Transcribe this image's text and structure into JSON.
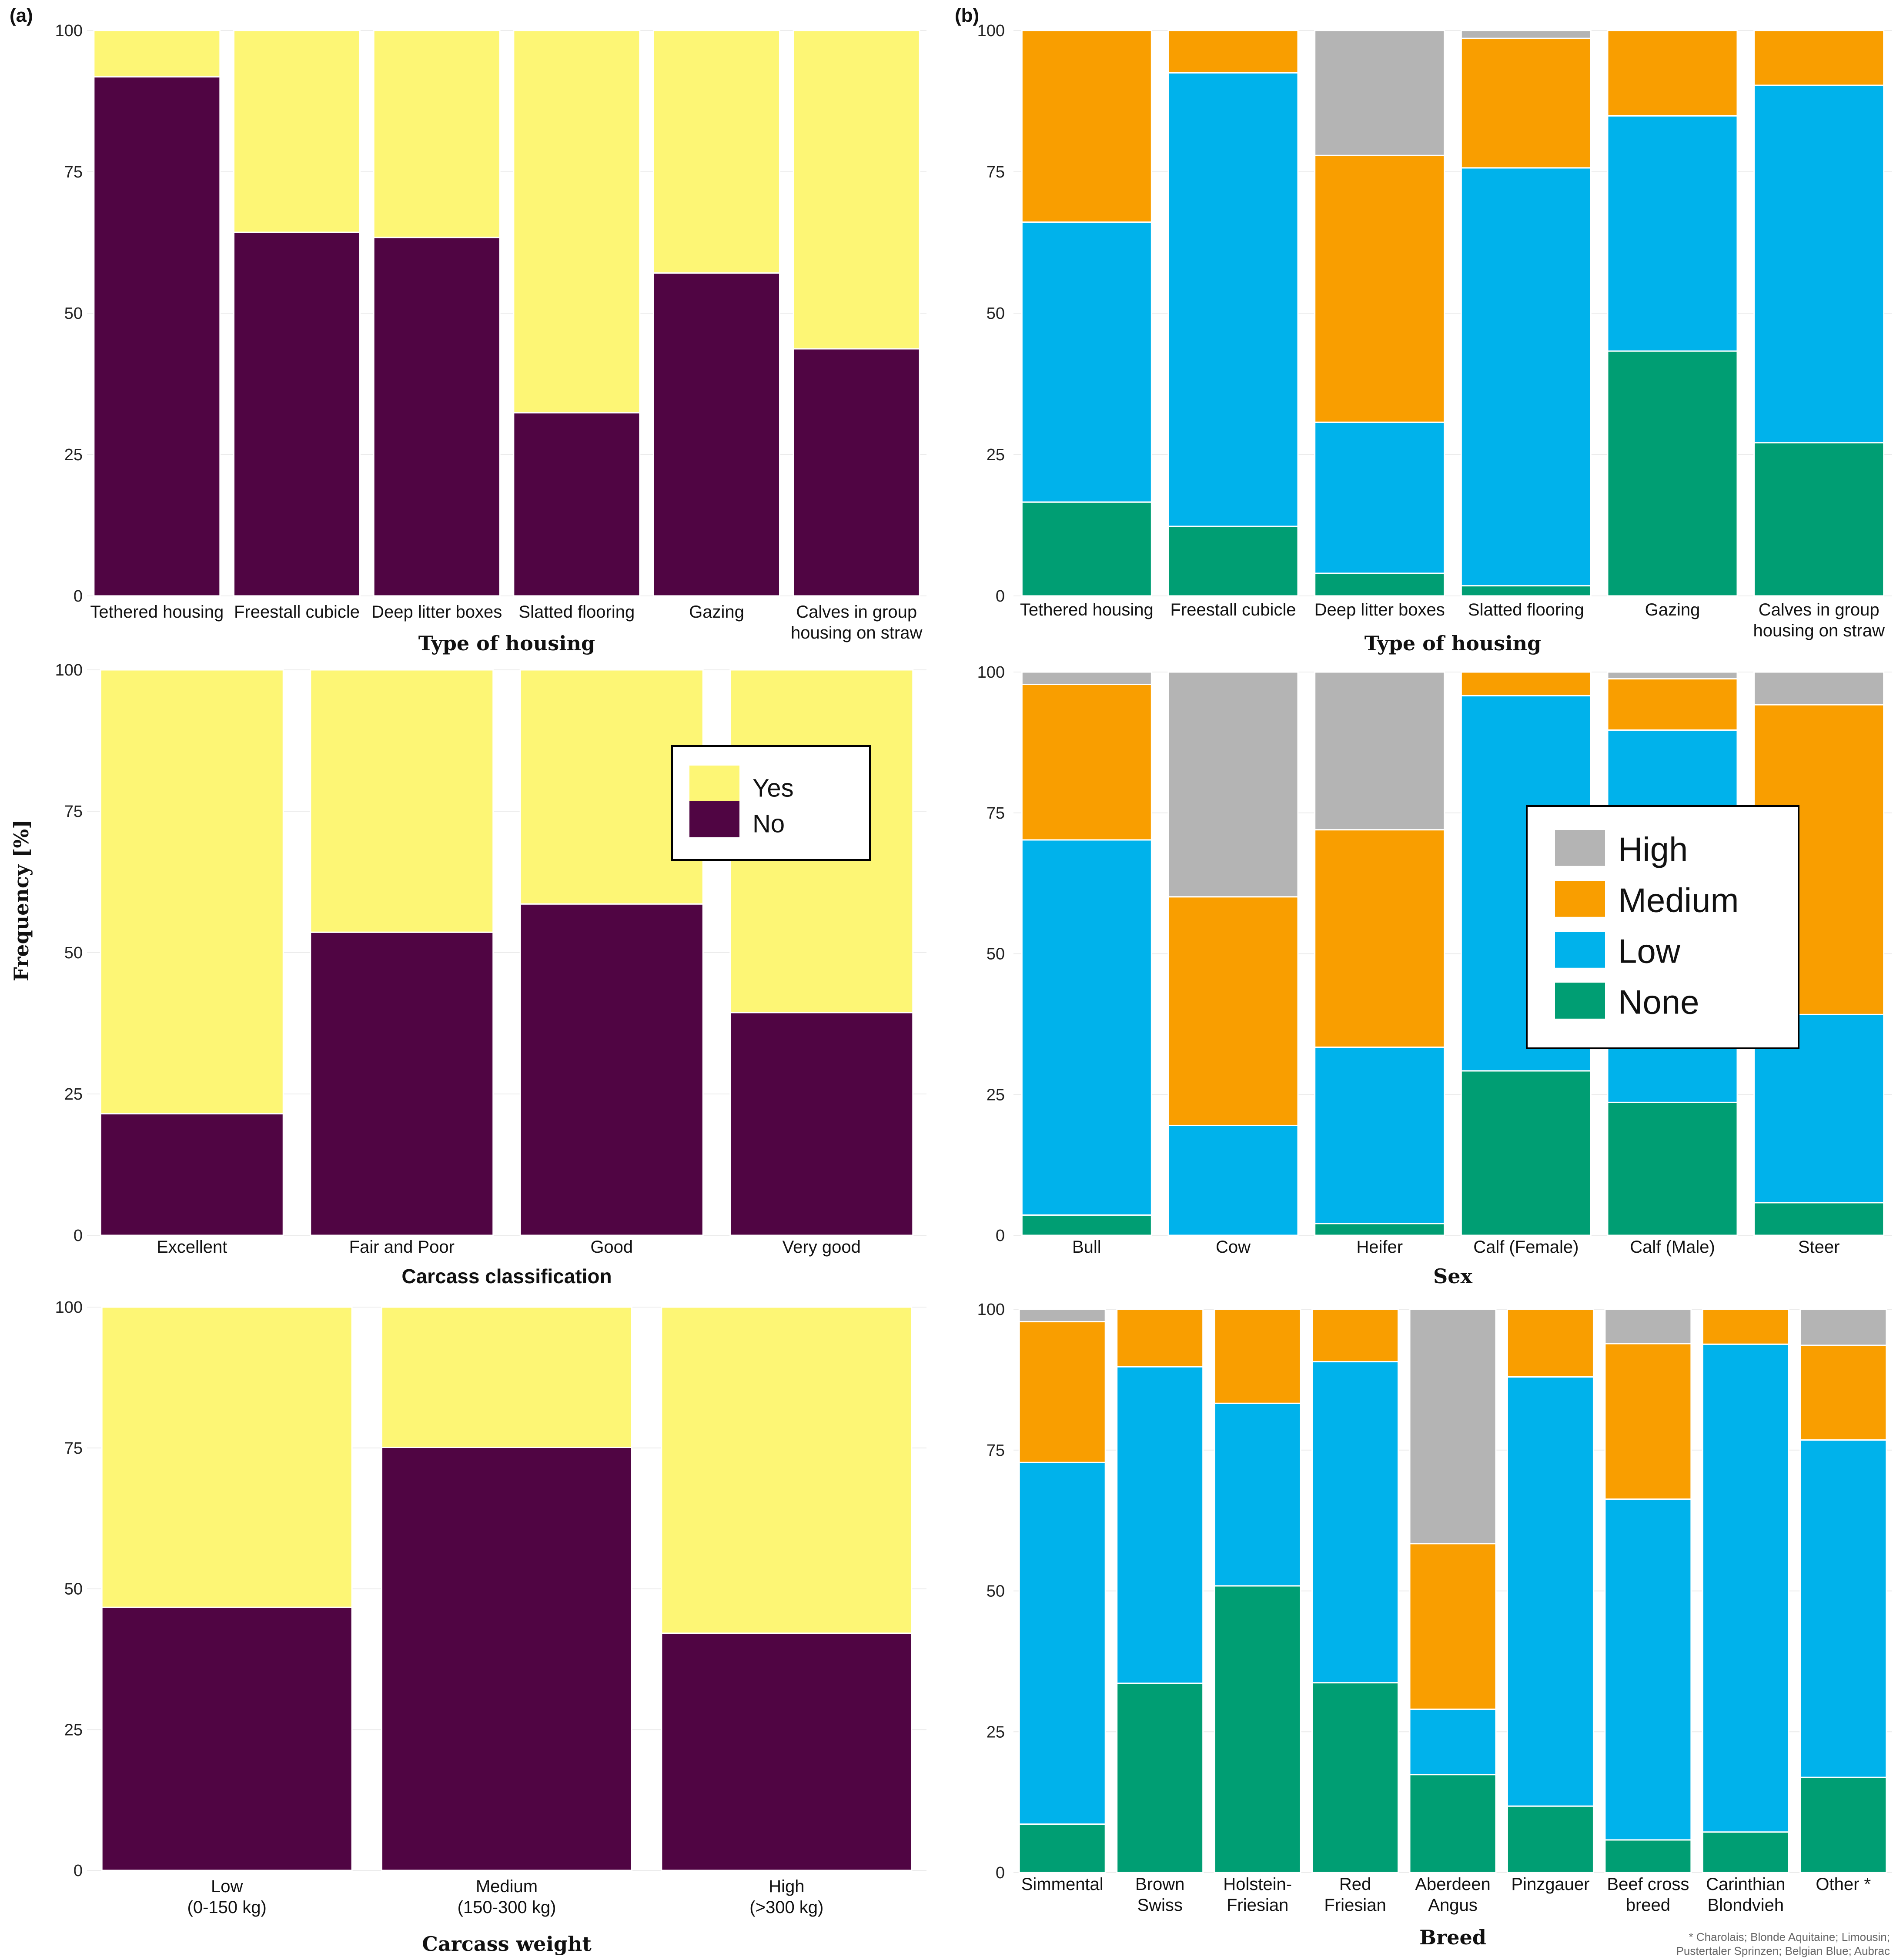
{
  "panel_labels": {
    "a": "(a)",
    "b": "(b)"
  },
  "y_axis_title": "Frequency [%]",
  "footnote": [
    "* Charolais; Blonde Aquitaine; Limousin;",
    "Pustertaler Sprinzen; Belgian Blue; Aubrac"
  ],
  "colors": {
    "Yes": "#fdf675",
    "No": "#500543",
    "High": "#b4b4b4",
    "Medium": "#f99e00",
    "Low": "#00b2eb",
    "None": "#009e73",
    "grid": "#ececec"
  },
  "legends": {
    "yes_no": [
      "Yes",
      "No"
    ],
    "severity": [
      "High",
      "Medium",
      "Low",
      "None"
    ]
  },
  "chart_data": [
    {
      "id": "a1",
      "type": "bar",
      "stacked": true,
      "xlabel": "Type of housing",
      "ylabel": "",
      "ylim": [
        0,
        100
      ],
      "yticks": [
        0,
        25,
        50,
        75,
        100
      ],
      "categories": [
        "Tethered housing",
        "Freestall cubicle",
        "Deep litter boxes",
        "Slatted flooring",
        "Gazing",
        "Calves in group\nhousing on straw"
      ],
      "series": [
        {
          "name": "No",
          "values": [
            91.8,
            64.3,
            63.4,
            32.4,
            57.1,
            43.7
          ]
        },
        {
          "name": "Yes",
          "values": [
            8.2,
            35.7,
            36.6,
            67.6,
            42.9,
            56.3
          ]
        }
      ]
    },
    {
      "id": "a2",
      "type": "bar",
      "stacked": true,
      "xlabel": "Carcass classification",
      "ylabel": "Frequency [%]",
      "ylim": [
        0,
        100
      ],
      "yticks": [
        0,
        25,
        50,
        75,
        100
      ],
      "categories": [
        "Excellent",
        "Fair and Poor",
        "Good",
        "Very good"
      ],
      "series": [
        {
          "name": "No",
          "values": [
            21.5,
            53.6,
            58.6,
            39.4
          ]
        },
        {
          "name": "Yes",
          "values": [
            78.5,
            46.4,
            41.4,
            60.6
          ]
        }
      ],
      "legend": "top-right"
    },
    {
      "id": "a3",
      "type": "bar",
      "stacked": true,
      "xlabel": "Carcass weight",
      "ylabel": "",
      "ylim": [
        0,
        100
      ],
      "yticks": [
        0,
        25,
        50,
        75,
        100
      ],
      "categories": [
        "Low\n(0-150 kg)",
        "Medium\n(150-300 kg)",
        "High\n(>300 kg)"
      ],
      "series": [
        {
          "name": "No",
          "values": [
            46.7,
            75.1,
            42.1
          ]
        },
        {
          "name": "Yes",
          "values": [
            53.3,
            24.9,
            57.9
          ]
        }
      ]
    },
    {
      "id": "b1",
      "type": "bar",
      "stacked": true,
      "xlabel": "Type of housing",
      "ylabel": "",
      "ylim": [
        0,
        100
      ],
      "yticks": [
        0,
        25,
        50,
        75,
        100
      ],
      "categories": [
        "Tethered housing",
        "Freestall cubicle",
        "Deep litter boxes",
        "Slatted flooring",
        "Gazing",
        "Calves in group\nhousing on straw"
      ],
      "series": [
        {
          "name": "None",
          "values": [
            16.6,
            12.3,
            4.0,
            1.8,
            43.3,
            27.1
          ]
        },
        {
          "name": "Low",
          "values": [
            49.5,
            80.2,
            26.7,
            73.9,
            41.6,
            63.2
          ]
        },
        {
          "name": "Medium",
          "values": [
            33.9,
            7.5,
            47.2,
            22.9,
            15.1,
            9.7
          ]
        },
        {
          "name": "High",
          "values": [
            0,
            0,
            22.1,
            1.4,
            0,
            0
          ]
        }
      ]
    },
    {
      "id": "b2",
      "type": "bar",
      "stacked": true,
      "xlabel": "Sex",
      "ylabel": "",
      "ylim": [
        0,
        100
      ],
      "yticks": [
        0,
        25,
        50,
        75,
        100
      ],
      "categories": [
        "Bull",
        "Cow",
        "Heifer",
        "Calf (Female)",
        "Calf (Male)",
        "Steer"
      ],
      "series": [
        {
          "name": "None",
          "values": [
            3.6,
            0,
            2.1,
            29.2,
            23.6,
            5.8
          ]
        },
        {
          "name": "Low",
          "values": [
            66.6,
            19.5,
            31.3,
            66.6,
            66.1,
            33.4
          ]
        },
        {
          "name": "Medium",
          "values": [
            27.6,
            40.6,
            38.6,
            4.2,
            9.1,
            55.0
          ]
        },
        {
          "name": "High",
          "values": [
            2.2,
            39.9,
            28.0,
            0,
            1.2,
            5.8
          ]
        }
      ],
      "legend": "center-right"
    },
    {
      "id": "b3",
      "type": "bar",
      "stacked": true,
      "xlabel": "Breed",
      "ylabel": "",
      "ylim": [
        0,
        100
      ],
      "yticks": [
        0,
        25,
        50,
        75,
        100
      ],
      "categories": [
        "Simmental",
        "Brown\nSwiss",
        "Holstein-\nFriesian",
        "Red\nFriesian",
        "Aberdeen\nAngus",
        "Pinzgauer",
        "Beef cross\nbreed",
        "Carinthian\nBlondvieh",
        "Other *"
      ],
      "series": [
        {
          "name": "None",
          "values": [
            8.6,
            33.6,
            50.9,
            33.7,
            17.4,
            11.8,
            5.8,
            7.2,
            16.9
          ]
        },
        {
          "name": "Low",
          "values": [
            64.2,
            56.2,
            32.4,
            57.0,
            11.6,
            76.2,
            60.5,
            86.6,
            59.9
          ]
        },
        {
          "name": "Medium",
          "values": [
            25.0,
            10.2,
            16.7,
            9.3,
            29.4,
            12.0,
            27.6,
            6.2,
            16.8
          ]
        },
        {
          "name": "High",
          "values": [
            2.2,
            0,
            0,
            0,
            41.6,
            0,
            6.1,
            0,
            6.4
          ]
        }
      ]
    }
  ]
}
